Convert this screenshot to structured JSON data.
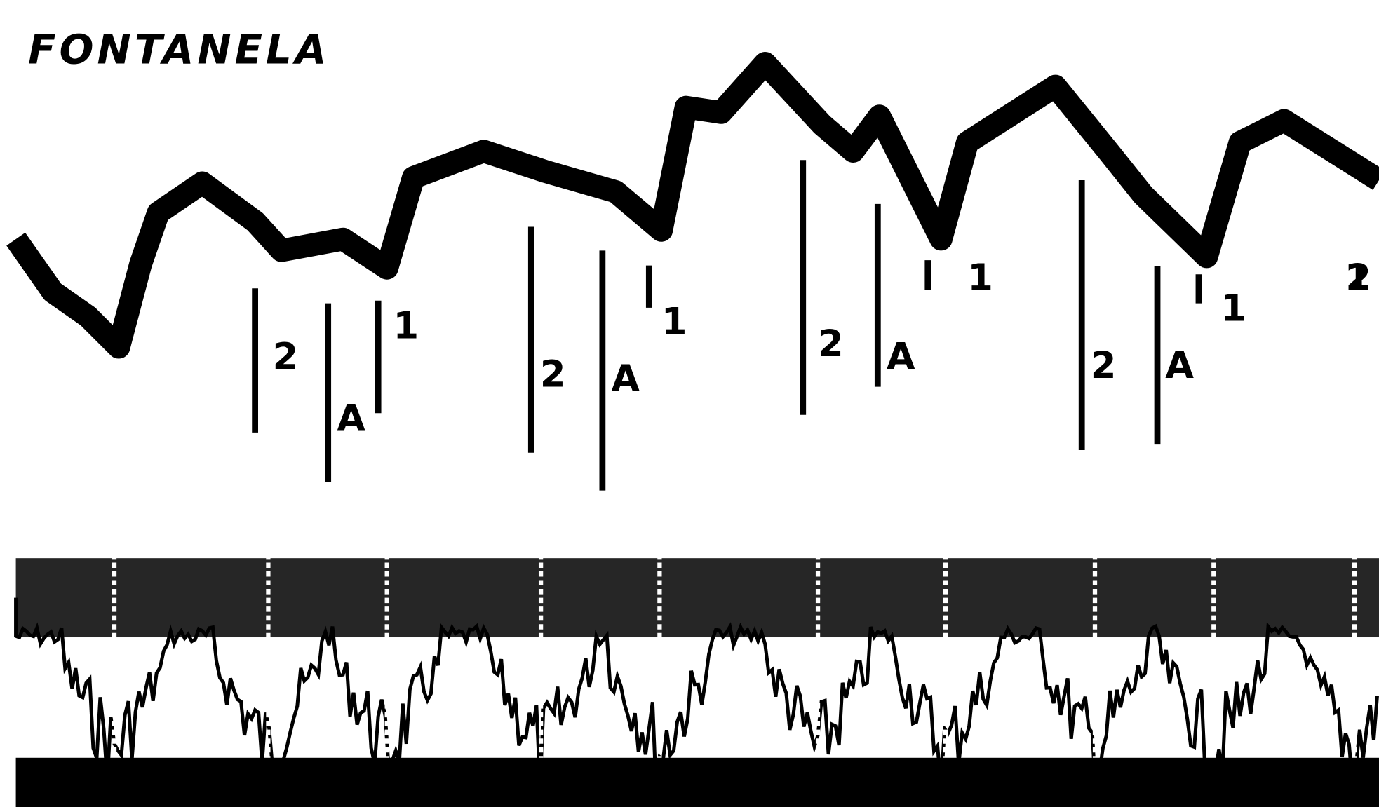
{
  "title": "FONTANELA",
  "markers": [
    "2",
    "A",
    "1",
    "2",
    "A",
    "1",
    "2",
    "A",
    "1",
    "2",
    "A",
    "1",
    "2"
  ]
}
